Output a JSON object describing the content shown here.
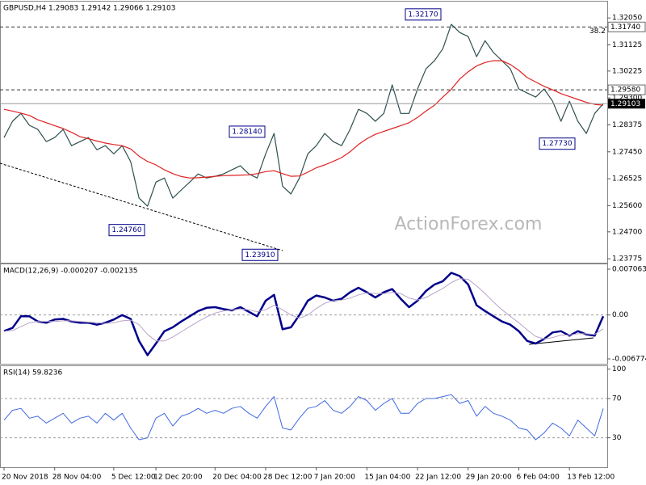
{
  "chart_data": [
    {
      "type": "line",
      "title": "GBPUSD,H4  1.29083 1.29142 1.29066 1.29103",
      "watermark": "ActionForex.com",
      "ylim": [
        1.2364,
        1.3261
      ],
      "yticks": [
        {
          "value": 1.3205,
          "label": "1.32050"
        },
        {
          "value": 1.31125,
          "label": "1.31125"
        },
        {
          "value": 1.30225,
          "label": "1.30225"
        },
        {
          "value": 1.293,
          "label": "1.29300"
        },
        {
          "value": 1.28375,
          "label": "1.28375"
        },
        {
          "value": 1.2745,
          "label": "1.27450"
        },
        {
          "value": 1.26525,
          "label": "1.26525"
        },
        {
          "value": 1.256,
          "label": "1.25600"
        },
        {
          "value": 1.247,
          "label": "1.24700"
        },
        {
          "value": 1.23775,
          "label": "1.23775"
        }
      ],
      "levels": [
        {
          "value": 1.3174,
          "label": "1.31740"
        },
        {
          "value": 1.2958,
          "label": "1.29580"
        }
      ],
      "fib_label": "38.2",
      "last": {
        "value": 1.29103,
        "label": "1.29103"
      },
      "annotations": [
        {
          "value": 1.3217,
          "label": "1.32170"
        },
        {
          "value": 1.2814,
          "label": "1.28140"
        },
        {
          "value": 1.2476,
          "label": "1.24760"
        },
        {
          "value": 1.2391,
          "label": "1.23910"
        },
        {
          "value": 1.2773,
          "label": "1.27730"
        }
      ],
      "series": [
        {
          "color": "#2f4f4f",
          "values": [
            1.2794,
            1.285,
            1.2877,
            1.2836,
            1.2822,
            1.278,
            1.2794,
            1.2822,
            1.2766,
            1.278,
            1.2794,
            1.2752,
            1.2766,
            1.2738,
            1.2766,
            1.2711,
            1.2586,
            1.2558,
            1.2641,
            1.2655,
            1.2586,
            1.2614,
            1.2641,
            1.2669,
            1.2655,
            1.2661,
            1.2669,
            1.2683,
            1.2697,
            1.2669,
            1.2655,
            1.2738,
            1.2808,
            1.2627,
            1.26,
            1.2655,
            1.2738,
            1.2766,
            1.2808,
            1.278,
            1.2766,
            1.2822,
            1.2891,
            1.2877,
            1.285,
            1.2877,
            1.2975,
            1.2877,
            1.2877,
            1.2961,
            1.303,
            1.3058,
            1.3099,
            1.3183,
            1.3155,
            1.3141,
            1.3072,
            1.3127,
            1.3086,
            1.3058,
            1.303,
            1.2961,
            1.2947,
            1.2933,
            1.2961,
            1.2919,
            1.285,
            1.2919,
            1.285,
            1.2808,
            1.2877,
            1.29103
          ]
        },
        {
          "color": "#e02020",
          "values": [
            1.2891,
            1.2885,
            1.2878,
            1.287,
            1.2855,
            1.2845,
            1.2835,
            1.2825,
            1.2812,
            1.2797,
            1.279,
            1.2782,
            1.2775,
            1.277,
            1.2766,
            1.2755,
            1.273,
            1.2712,
            1.27,
            1.2683,
            1.267,
            1.266,
            1.2655,
            1.2656,
            1.2658,
            1.2661,
            1.2663,
            1.2664,
            1.2665,
            1.2666,
            1.267,
            1.2677,
            1.268,
            1.267,
            1.2661,
            1.2662,
            1.2675,
            1.269,
            1.27,
            1.2712,
            1.2725,
            1.2745,
            1.277,
            1.279,
            1.2805,
            1.2815,
            1.2825,
            1.2835,
            1.2845,
            1.2863,
            1.2885,
            1.2905,
            1.2933,
            1.296,
            1.2995,
            1.302,
            1.304,
            1.3052,
            1.3058,
            1.3058,
            1.3045,
            1.3025,
            1.3,
            1.2985,
            1.297,
            1.2958,
            1.2945,
            1.2935,
            1.2925,
            1.2915,
            1.2908,
            1.2905
          ]
        }
      ]
    },
    {
      "type": "line",
      "title": "MACD(12,26,9) -0.000207 -0.002135",
      "ylim": [
        -0.00752,
        0.00781
      ],
      "yticks": [
        0.007063,
        {
          "value": 0,
          "label": "0.00"
        },
        -0.006774
      ],
      "levels": [
        0
      ],
      "series": [
        {
          "color": "#00008b",
          "width": 2.5,
          "values": [
            -0.00249,
            -0.002,
            -0.0002,
            -0.0002,
            -0.001,
            -0.0012,
            -0.0007,
            -0.0006,
            -0.001,
            -0.0012,
            -0.0012,
            -0.0015,
            -0.0012,
            -0.0007,
            0.0,
            -0.0006,
            -0.004,
            -0.0062,
            -0.0044,
            -0.0025,
            -0.0019,
            -0.001,
            -0.0002,
            0.0006,
            0.0011,
            0.0012,
            0.0009,
            0.0007,
            0.0012,
            0.0005,
            -0.0002,
            0.0022,
            0.0031,
            -0.0022,
            -0.0019,
            0.0,
            0.0022,
            0.003,
            0.0027,
            0.0022,
            0.0025,
            0.0035,
            0.0042,
            0.0035,
            0.0027,
            0.0035,
            0.004,
            0.0025,
            0.0012,
            0.0022,
            0.0037,
            0.0047,
            0.0052,
            0.0065,
            0.006,
            0.0047,
            0.0015,
            0.0006,
            -0.0002,
            -0.001,
            -0.0015,
            -0.0025,
            -0.004,
            -0.0044,
            -0.0037,
            -0.0027,
            -0.0025,
            -0.0032,
            -0.0025,
            -0.003,
            -0.0032,
            -0.000207
          ]
        },
        {
          "color": "#b9a3c8",
          "width": 1,
          "values": [
            -0.0025,
            -0.0024,
            -0.0018,
            -0.0012,
            -0.001,
            -0.001,
            -0.001,
            -0.0009,
            -0.0009,
            -0.001,
            -0.0011,
            -0.0012,
            -0.0013,
            -0.0012,
            -0.0009,
            -0.0008,
            -0.0015,
            -0.003,
            -0.004,
            -0.004,
            -0.0034,
            -0.0026,
            -0.0018,
            -0.001,
            -0.0003,
            0.0003,
            0.0006,
            0.0008,
            0.0009,
            0.0008,
            0.0005,
            0.0008,
            0.0015,
            0.0008,
            0.0,
            -0.0005,
            0.0,
            0.001,
            0.0018,
            0.0022,
            0.0023,
            0.0026,
            0.0031,
            0.0034,
            0.0033,
            0.0033,
            0.0035,
            0.0033,
            0.0026,
            0.0023,
            0.0027,
            0.0034,
            0.0041,
            0.005,
            0.0056,
            0.0055,
            0.0045,
            0.0033,
            0.002,
            0.0008,
            -0.0002,
            -0.0012,
            -0.0023,
            -0.0033,
            -0.0037,
            -0.0035,
            -0.0031,
            -0.0031,
            -0.0029,
            -0.0029,
            -0.003,
            -0.002135
          ]
        }
      ]
    },
    {
      "type": "line",
      "title": "RSI(14) 59.8236",
      "ylim": [
        0,
        103
      ],
      "yticks": [
        100,
        70,
        30
      ],
      "levels": [
        70,
        30
      ],
      "categories": [
        "20 Nov 2018",
        null,
        null,
        null,
        null,
        null,
        "28 Nov 04:00",
        null,
        null,
        null,
        null,
        null,
        null,
        "5 Dec 12:00",
        null,
        null,
        null,
        null,
        "12 Dec 20:00",
        null,
        null,
        null,
        null,
        null,
        null,
        "20 Dec 04:00",
        null,
        null,
        null,
        null,
        null,
        "28 Dec 12:00",
        null,
        null,
        null,
        null,
        null,
        "7 Jan 20:00",
        null,
        null,
        null,
        null,
        null,
        "15 Jan 04:00",
        null,
        null,
        null,
        null,
        null,
        "22 Jan 12:00",
        null,
        null,
        null,
        null,
        null,
        "29 Jan 20:00",
        null,
        null,
        null,
        null,
        null,
        "6 Feb 04:00",
        null,
        null,
        null,
        null,
        null,
        "13 Feb 12:00",
        null,
        null,
        null,
        null
      ],
      "series": [
        {
          "color": "#4169e1",
          "width": 1,
          "values": [
            48,
            58,
            60,
            50,
            52,
            45,
            50,
            55,
            45,
            50,
            52,
            45,
            55,
            48,
            55,
            40,
            28,
            30,
            50,
            55,
            42,
            52,
            55,
            60,
            55,
            58,
            55,
            60,
            62,
            55,
            50,
            62,
            72,
            40,
            38,
            50,
            60,
            62,
            68,
            58,
            55,
            62,
            72,
            68,
            58,
            65,
            70,
            55,
            55,
            65,
            70,
            70,
            72,
            74,
            65,
            68,
            52,
            62,
            55,
            52,
            48,
            40,
            38,
            28,
            35,
            45,
            40,
            32,
            48,
            40,
            32,
            59.8236
          ]
        }
      ]
    }
  ]
}
